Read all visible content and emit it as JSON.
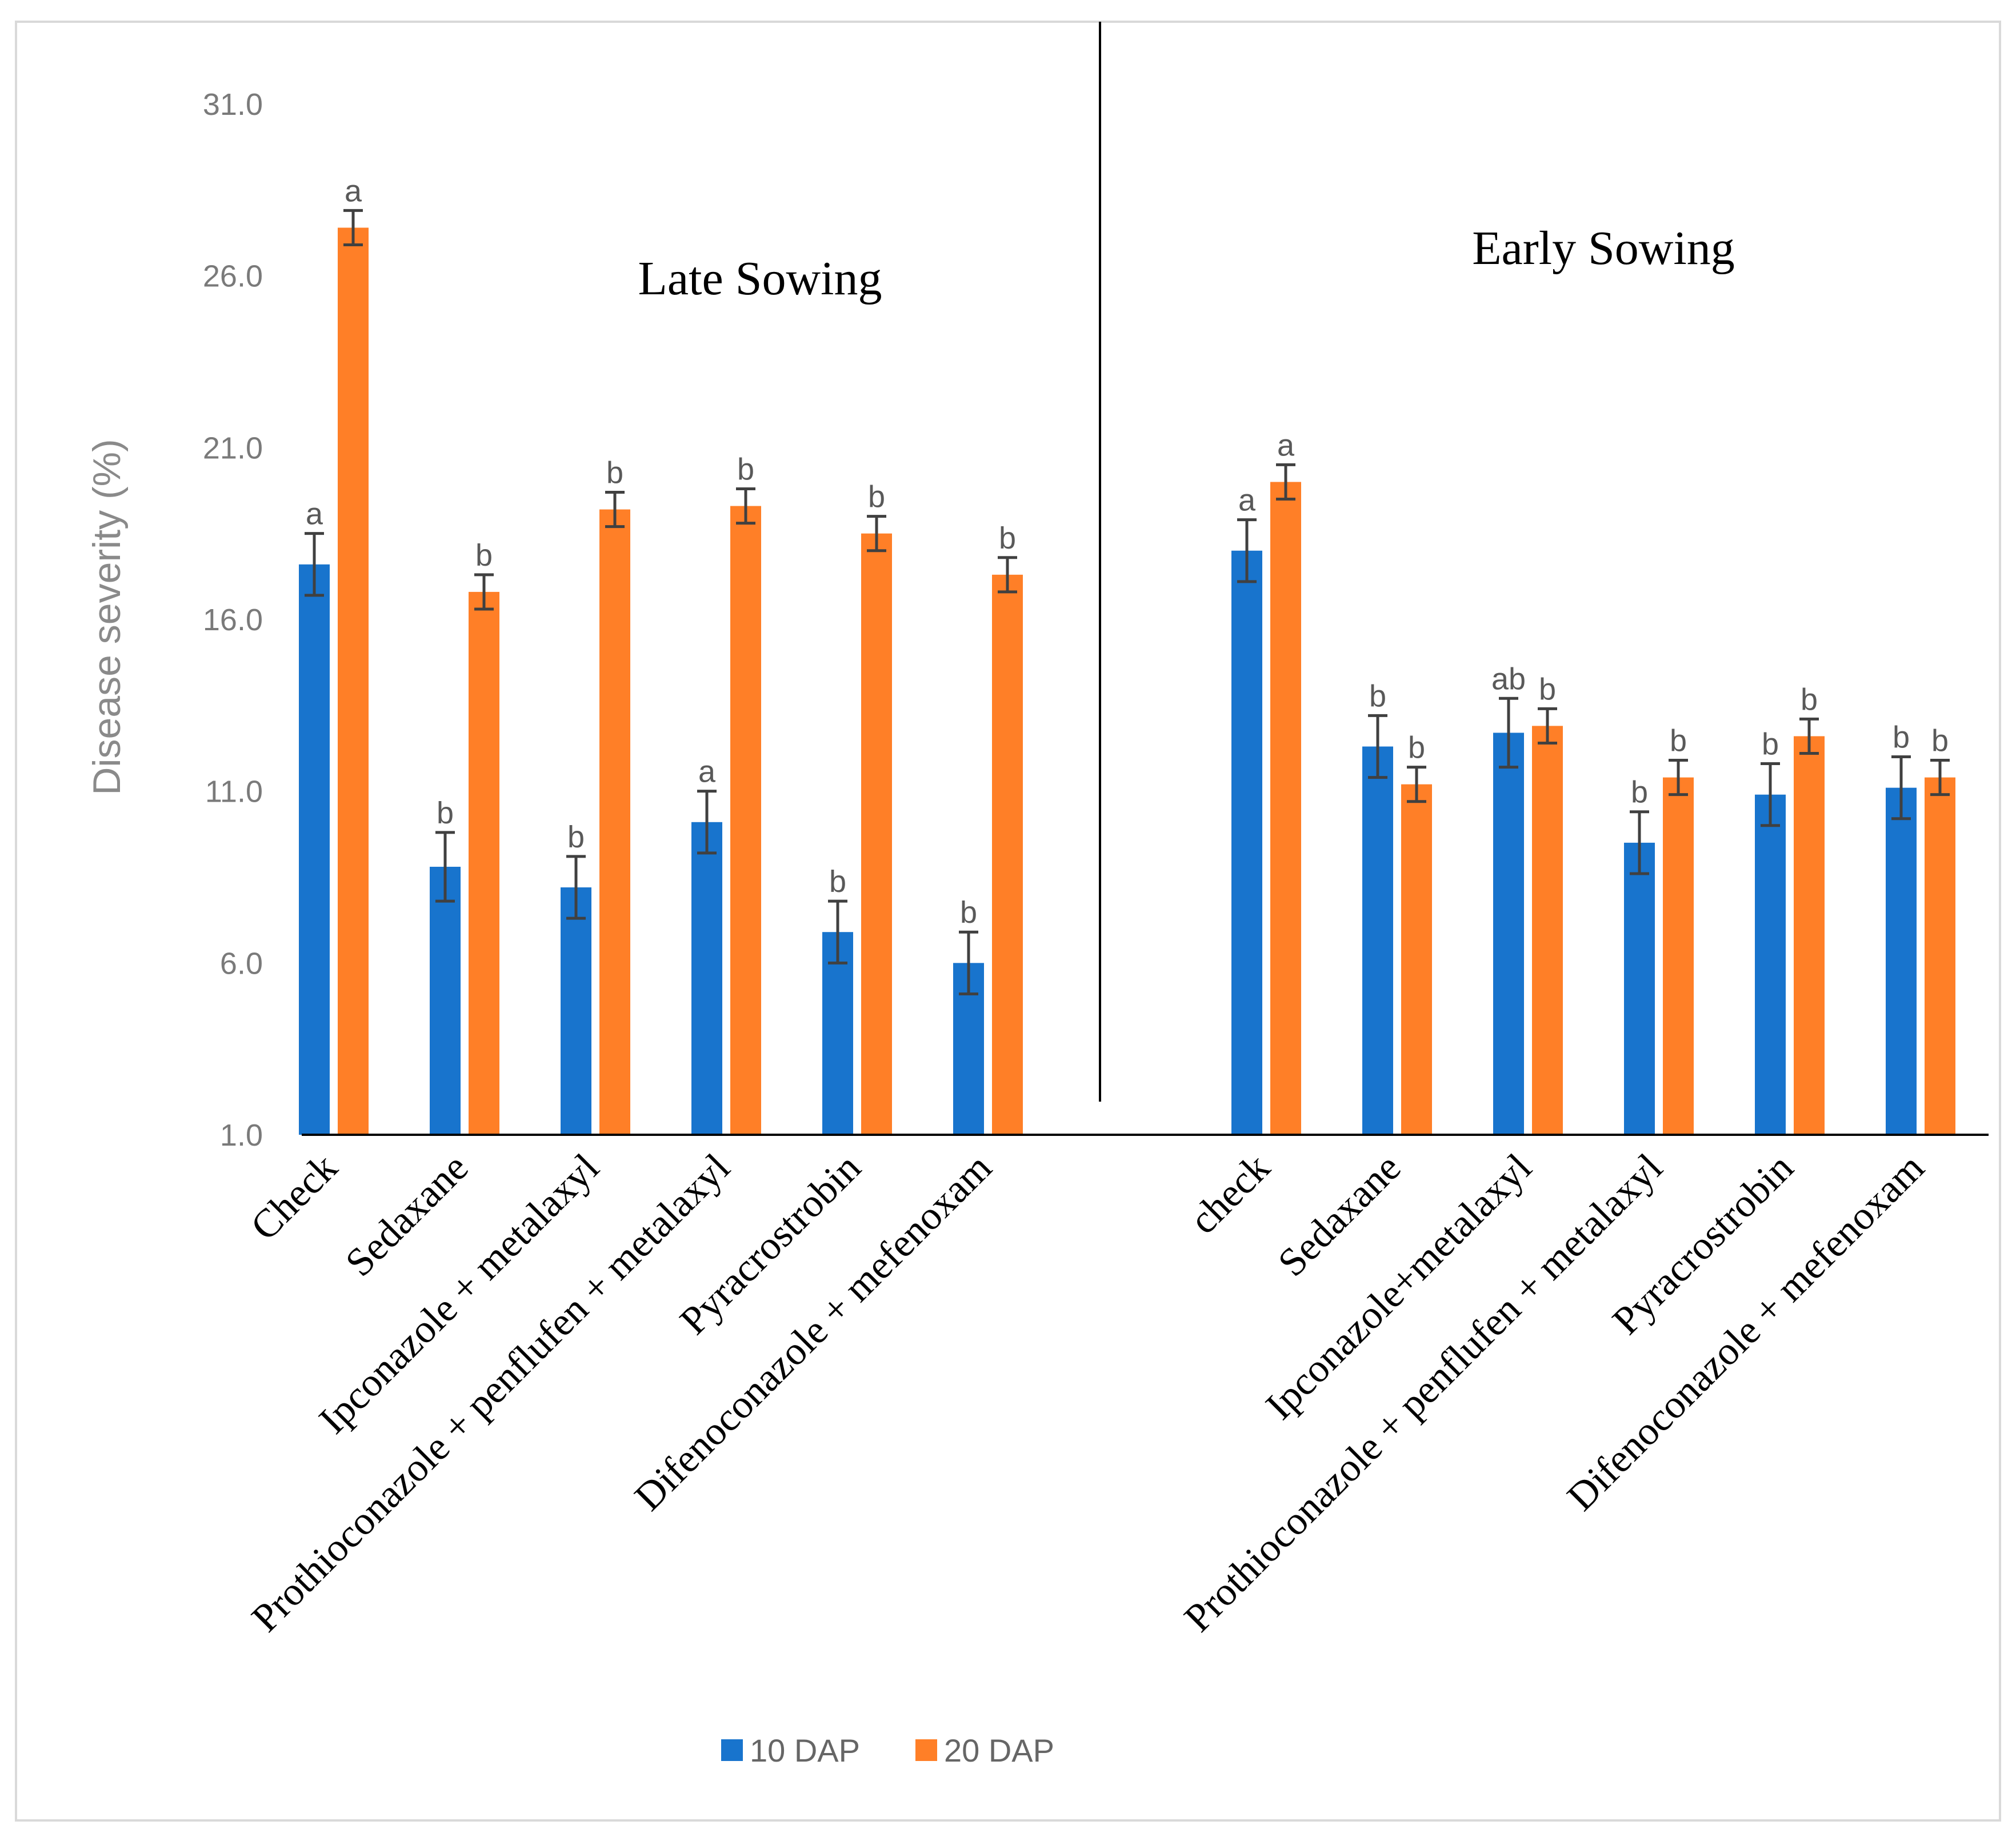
{
  "chart_data": {
    "type": "bar",
    "ylabel": "Disease severity (%)",
    "ylim": [
      1.0,
      31.0
    ],
    "yticks": [
      "1.0",
      "6.0",
      "11.0",
      "16.0",
      "21.0",
      "26.0",
      "31.0"
    ],
    "grid": false,
    "legend_position": "bottom",
    "colors": {
      "10 DAP": "#1874cd",
      "20 DAP": "#ff7f27",
      "error_bar": "#404040",
      "axis": "#000000"
    },
    "panels": [
      {
        "title": "Late Sowing",
        "categories": [
          "Check",
          "Sedaxane",
          "Ipconazole + metalaxyl",
          "Prothioconazole + penflufen + metalaxyl",
          "Pyracrostrobin",
          "Difenoconazole + mefenoxam"
        ],
        "series": [
          {
            "name": "10 DAP",
            "values": [
              17.6,
              8.8,
              8.2,
              10.1,
              6.9,
              6.0
            ],
            "errors": [
              0.9,
              1.0,
              0.9,
              0.9,
              0.9,
              0.9
            ],
            "labels": [
              "a",
              "b",
              "b",
              "a",
              "b",
              "b"
            ]
          },
          {
            "name": "20 DAP",
            "values": [
              27.4,
              16.8,
              19.2,
              19.3,
              18.5,
              17.3
            ],
            "errors": [
              0.5,
              0.5,
              0.5,
              0.5,
              0.5,
              0.5
            ],
            "labels": [
              "a",
              "b",
              "b",
              "b",
              "b",
              "b"
            ]
          }
        ]
      },
      {
        "title": "Early Sowing",
        "categories": [
          "check",
          "Sedaxane",
          "Ipconazole+metalaxyl",
          "Prothioconazole + penflufen + metalaxyl",
          "Pyracrostrobin",
          "Difenoconazole + mefenoxam"
        ],
        "series": [
          {
            "name": "10 DAP",
            "values": [
              18.0,
              12.3,
              12.7,
              9.5,
              10.9,
              11.1
            ],
            "errors": [
              0.9,
              0.9,
              1.0,
              0.9,
              0.9,
              0.9
            ],
            "labels": [
              "a",
              "b",
              "ab",
              "b",
              "b",
              "b"
            ]
          },
          {
            "name": "20 DAP",
            "values": [
              20.0,
              11.2,
              12.9,
              11.4,
              12.6,
              11.4
            ],
            "errors": [
              0.5,
              0.5,
              0.5,
              0.5,
              0.5,
              0.5
            ],
            "labels": [
              "a",
              "b",
              "b",
              "b",
              "b",
              "b"
            ]
          }
        ]
      }
    ]
  }
}
